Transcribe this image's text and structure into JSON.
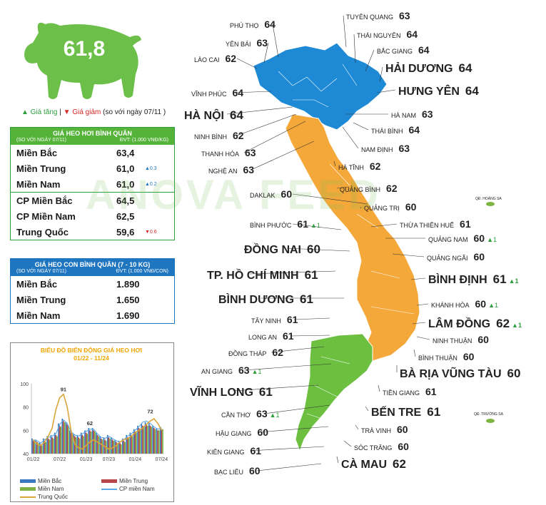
{
  "pig": {
    "value": "61,8"
  },
  "legend": {
    "up": "▲ Giá tăng",
    "sep": "|",
    "down": "▼ Giá giảm",
    "note": "(so với ngày 07/11 )"
  },
  "live_table": {
    "title": "GIÁ HEO HƠI BÌNH QUÂN",
    "sub_left": "(SO VỚI NGÀY 07/11)",
    "sub_right": "ĐVT: (1.000 VNĐ/KG)",
    "rows": [
      {
        "name": "Miền Bắc",
        "value": "63,4",
        "change": ""
      },
      {
        "name": "Miền Trung",
        "value": "61,0",
        "change": "▲0.3"
      },
      {
        "name": "Miền Nam",
        "value": "61,0",
        "change": "▲0.2"
      },
      {
        "name": "CP Miền Bắc",
        "value": "64,5",
        "change": ""
      },
      {
        "name": "CP Miền Nam",
        "value": "62,5",
        "change": ""
      },
      {
        "name": "Trung Quốc",
        "value": "59,6",
        "change": "▼0.6"
      }
    ]
  },
  "piglet_table": {
    "title": "GIÁ HEO CON BÌNH QUÂN (7 - 10 KG)",
    "sub_left": "(SO VỚI NGÀY 07/11)",
    "sub_right": "ĐVT: (1.000 VNĐ/CON)",
    "rows": [
      {
        "name": "Miền Bắc",
        "value": "1.890"
      },
      {
        "name": "Miền Trung",
        "value": "1.650"
      },
      {
        "name": "Miền Nam",
        "value": "1.690"
      }
    ]
  },
  "chart_data": {
    "type": "bar",
    "title": "BIỂU ĐỒ BIẾN ĐỘNG GIÁ HEO HƠI",
    "subtitle": "01/22 - 11/24",
    "ylim": [
      40,
      100
    ],
    "yticks": [
      "100",
      "80",
      "60",
      "40"
    ],
    "xticks": [
      "01/22",
      "07/22",
      "01/23",
      "07/23",
      "01/24",
      "07/24"
    ],
    "annotations": [
      "91",
      "62",
      "72"
    ],
    "colors": {
      "mien_bac": "#3a78c0",
      "mien_trung": "#b8474a",
      "mien_nam": "#7cb342",
      "cp_mien_nam": "#5aa9e6",
      "trung_quoc": "#d9a53a"
    },
    "series": [
      {
        "name": "Miền Bắc",
        "values": [
          53,
          52,
          50,
          53,
          55,
          56,
          58,
          66,
          70,
          67,
          60,
          57,
          56,
          58,
          60,
          62,
          62,
          58,
          55,
          54,
          56,
          54,
          52,
          51,
          53,
          56,
          58,
          61,
          64,
          66,
          67,
          66,
          64,
          62,
          63
        ]
      },
      {
        "name": "Miền Trung",
        "values": [
          51,
          50,
          48,
          51,
          53,
          54,
          56,
          64,
          68,
          65,
          58,
          55,
          54,
          56,
          58,
          60,
          60,
          56,
          53,
          52,
          54,
          52,
          50,
          49,
          51,
          54,
          56,
          59,
          62,
          64,
          65,
          64,
          62,
          60,
          61
        ]
      },
      {
        "name": "Miền Nam",
        "values": [
          50,
          49,
          47,
          50,
          52,
          53,
          55,
          63,
          67,
          64,
          57,
          54,
          53,
          55,
          57,
          59,
          59,
          55,
          52,
          51,
          53,
          51,
          49,
          48,
          50,
          53,
          55,
          58,
          61,
          63,
          64,
          63,
          61,
          60,
          61
        ]
      },
      {
        "name": "CP miền Nam",
        "values": [
          52,
          51,
          49,
          52,
          54,
          55,
          57,
          65,
          69,
          66,
          59,
          56,
          55,
          57,
          59,
          61,
          61,
          57,
          54,
          53,
          55,
          53,
          51,
          50,
          52,
          55,
          57,
          60,
          63,
          67,
          68,
          66,
          63,
          61,
          62
        ]
      },
      {
        "name": "Trung Quốc",
        "values": [
          52,
          48,
          47,
          50,
          55,
          62,
          78,
          88,
          91,
          80,
          60,
          48,
          45,
          44,
          47,
          50,
          52,
          50,
          48,
          46,
          44,
          45,
          47,
          50,
          52,
          53,
          55,
          58,
          60,
          62,
          65,
          68,
          70,
          66,
          60
        ]
      }
    ]
  },
  "map": {
    "labels": [
      {
        "name": "PHÚ THỌ",
        "value": "64",
        "big": false,
        "change": ""
      },
      {
        "name": "TUYÊN QUANG",
        "value": "63",
        "big": false,
        "change": ""
      },
      {
        "name": "THÁI NGUYÊN",
        "value": "64",
        "big": false,
        "change": ""
      },
      {
        "name": "YÊN BÁI",
        "value": "63",
        "big": false,
        "change": ""
      },
      {
        "name": "BẮC GIANG",
        "value": "64",
        "big": false,
        "change": ""
      },
      {
        "name": "LÀO CAI",
        "value": "62",
        "big": false,
        "change": ""
      },
      {
        "name": "HẢI DƯƠNG",
        "value": "64",
        "big": true,
        "change": ""
      },
      {
        "name": "VĨNH PHÚC",
        "value": "64",
        "big": false,
        "change": ""
      },
      {
        "name": "HƯNG YÊN",
        "value": "64",
        "big": true,
        "change": ""
      },
      {
        "name": "HÀ NỘI",
        "value": "64",
        "big": true,
        "change": ""
      },
      {
        "name": "HÀ NAM",
        "value": "63",
        "big": false,
        "change": ""
      },
      {
        "name": "NINH BÌNH",
        "value": "62",
        "big": false,
        "change": ""
      },
      {
        "name": "THÁI BÌNH",
        "value": "64",
        "big": false,
        "change": ""
      },
      {
        "name": "THANH HÓA",
        "value": "63",
        "big": false,
        "change": ""
      },
      {
        "name": "NAM ĐỊNH",
        "value": "63",
        "big": false,
        "change": ""
      },
      {
        "name": "NGHỆ AN",
        "value": "63",
        "big": false,
        "change": ""
      },
      {
        "name": "HÀ TĨNH",
        "value": "62",
        "big": false,
        "change": ""
      },
      {
        "name": "QUẢNG BÌNH",
        "value": "62",
        "big": false,
        "change": ""
      },
      {
        "name": "DAKLAK",
        "value": "60",
        "big": false,
        "change": ""
      },
      {
        "name": "QUẢNG TRỊ",
        "value": "60",
        "big": false,
        "change": ""
      },
      {
        "name": "BÌNH PHƯỚC",
        "value": "61",
        "big": false,
        "change": "▲1"
      },
      {
        "name": "THỪA THIÊN HUẾ",
        "value": "61",
        "big": false,
        "change": ""
      },
      {
        "name": "QUẢNG NAM",
        "value": "60",
        "big": false,
        "change": "▲1"
      },
      {
        "name": "ĐỒNG NAI",
        "value": "60",
        "big": true,
        "change": ""
      },
      {
        "name": "QUẢNG NGÃI",
        "value": "60",
        "big": false,
        "change": ""
      },
      {
        "name": "TP. HỒ CHÍ MINH",
        "value": "61",
        "big": true,
        "change": ""
      },
      {
        "name": "BÌNH ĐỊNH",
        "value": "61",
        "big": true,
        "change": "▲1"
      },
      {
        "name": "BÌNH DƯƠNG",
        "value": "61",
        "big": true,
        "change": ""
      },
      {
        "name": "KHÁNH HÒA",
        "value": "60",
        "big": false,
        "change": "▲1"
      },
      {
        "name": "TÂY NINH",
        "value": "61",
        "big": false,
        "change": ""
      },
      {
        "name": "LÂM ĐỒNG",
        "value": "62",
        "big": true,
        "change": "▲1"
      },
      {
        "name": "LONG AN",
        "value": "61",
        "big": false,
        "change": ""
      },
      {
        "name": "NINH THUẬN",
        "value": "60",
        "big": false,
        "change": ""
      },
      {
        "name": "ĐỒNG THÁP",
        "value": "62",
        "big": false,
        "change": ""
      },
      {
        "name": "BÌNH THUẬN",
        "value": "60",
        "big": false,
        "change": ""
      },
      {
        "name": "AN GIANG",
        "value": "63",
        "big": false,
        "change": "▲1"
      },
      {
        "name": "BÀ RỊA VŨNG TÀU",
        "value": "60",
        "big": true,
        "change": ""
      },
      {
        "name": "VĨNH LONG",
        "value": "61",
        "big": true,
        "change": ""
      },
      {
        "name": "TIỀN GIANG",
        "value": "61",
        "big": false,
        "change": ""
      },
      {
        "name": "CẦN THƠ",
        "value": "63",
        "big": false,
        "change": "▲1"
      },
      {
        "name": "BẾN TRE",
        "value": "61",
        "big": true,
        "change": ""
      },
      {
        "name": "HẬU GIANG",
        "value": "60",
        "big": false,
        "change": ""
      },
      {
        "name": "TRÀ VINH",
        "value": "60",
        "big": false,
        "change": ""
      },
      {
        "name": "KIÊN GIANG",
        "value": "61",
        "big": false,
        "change": ""
      },
      {
        "name": "SÓC TRĂNG",
        "value": "60",
        "big": false,
        "change": ""
      },
      {
        "name": "BẠC LIÊU",
        "value": "60",
        "big": false,
        "change": ""
      },
      {
        "name": "CÀ MAU",
        "value": "62",
        "big": true,
        "change": ""
      }
    ],
    "islands": [
      "QĐ. HOÀNG SA",
      "QĐ. TRƯỜNG SA"
    ],
    "colors": {
      "north": "#1e8ad6",
      "central": "#f5a83a",
      "south": "#6cbf3f"
    }
  },
  "watermark": "ANOVA FEED"
}
